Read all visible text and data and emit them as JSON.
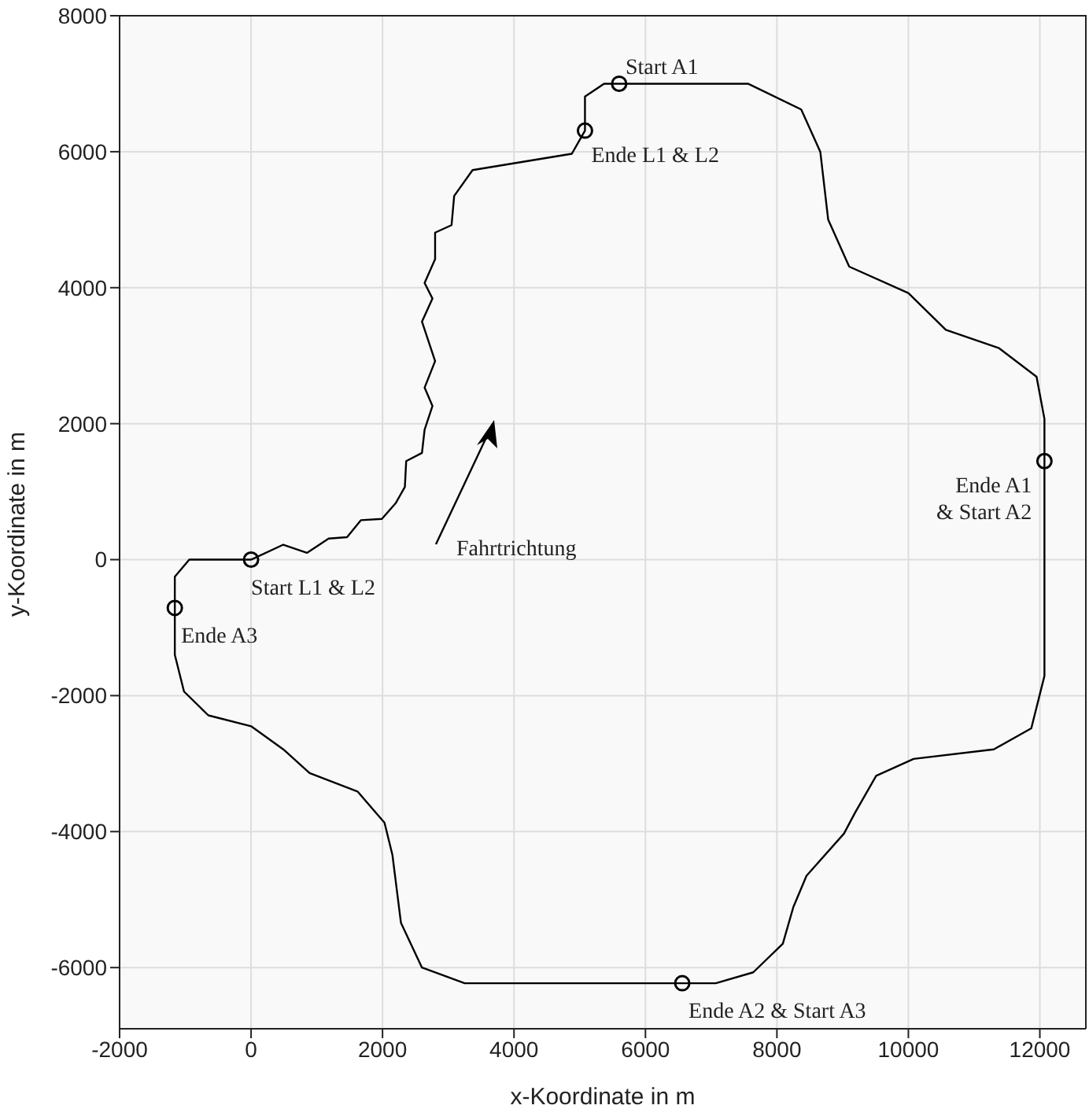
{
  "chart_data": {
    "type": "line",
    "xlabel": "x-Koordinate in m",
    "ylabel": "y-Koordinate in m",
    "xlim": [
      -2000,
      12700
    ],
    "ylim": [
      -6900,
      8000
    ],
    "xticks": [
      -2000,
      0,
      2000,
      4000,
      6000,
      8000,
      10000,
      12000
    ],
    "yticks": [
      -6000,
      -4000,
      -2000,
      0,
      2000,
      4000,
      6000,
      8000
    ],
    "grid": true,
    "series": [
      {
        "type": "line",
        "color": "#000000",
        "line_style": "solid",
        "marker": "none",
        "x": [
          0,
          490,
          850,
          1180,
          1460,
          1670,
          1990,
          2200,
          2340,
          2360,
          2600,
          2640,
          2760,
          2640,
          2800,
          2600,
          2760,
          2640,
          2800,
          2800,
          3050,
          3090,
          3370,
          4880,
          5080,
          5080,
          5370,
          5600,
          7560,
          8370,
          8660,
          8780,
          9100,
          10000,
          10570,
          11380,
          11950,
          12070,
          12070,
          12070,
          11870,
          11300,
          10080,
          9510,
          9190,
          9020,
          8450,
          8250,
          8090,
          7640,
          7070,
          6560,
          3250,
          2600,
          2280,
          2150,
          2030,
          1620,
          890,
          490,
          0,
          -650,
          -1020,
          -1160,
          -1160
        ],
        "values": [
          0,
          220,
          100,
          310,
          330,
          580,
          600,
          830,
          1070,
          1450,
          1570,
          1910,
          2260,
          2530,
          2920,
          3500,
          3840,
          4070,
          4420,
          4810,
          4920,
          5350,
          5730,
          5970,
          6310,
          6810,
          7000,
          7000,
          7000,
          6620,
          6000,
          5000,
          4310,
          3920,
          3380,
          3110,
          2690,
          2070,
          1450,
          -1710,
          -2480,
          -2790,
          -2930,
          -3180,
          -3720,
          -4030,
          -4650,
          -5110,
          -5650,
          -6070,
          -6230,
          -6230,
          -6230,
          -6000,
          -5340,
          -4340,
          -3870,
          -3410,
          -3140,
          -2790,
          -2450,
          -2290,
          -1940,
          -1400,
          -710
        ]
      },
      {
        "type": "line",
        "color": "#000000",
        "line_style": "solid",
        "marker": "none",
        "x": [
          -1160,
          -1160,
          -940,
          0
        ],
        "values": [
          -710,
          -250,
          0,
          0
        ]
      },
      {
        "type": "scatter",
        "color": "#000000",
        "marker": "circle",
        "x": [
          5600,
          5080,
          12070,
          6560,
          0,
          -1160
        ],
        "values": [
          7000,
          6310,
          1450,
          -6230,
          0,
          -710
        ]
      }
    ],
    "annotations": [
      {
        "text": "Start A1",
        "x": 5600,
        "y": 7000
      },
      {
        "text": "Ende L1 & L2",
        "x": 5080,
        "y": 6310
      },
      {
        "text": "Ende A1\n& Start A2",
        "x": 12070,
        "y": 1450
      },
      {
        "text": "Ende A2 & Start A3",
        "x": 6560,
        "y": -6230
      },
      {
        "text": "Start L1 & L2",
        "x": 0,
        "y": 0
      },
      {
        "text": "Ende A3",
        "x": -1160,
        "y": -710
      },
      "Fahrtrichtung"
    ]
  }
}
